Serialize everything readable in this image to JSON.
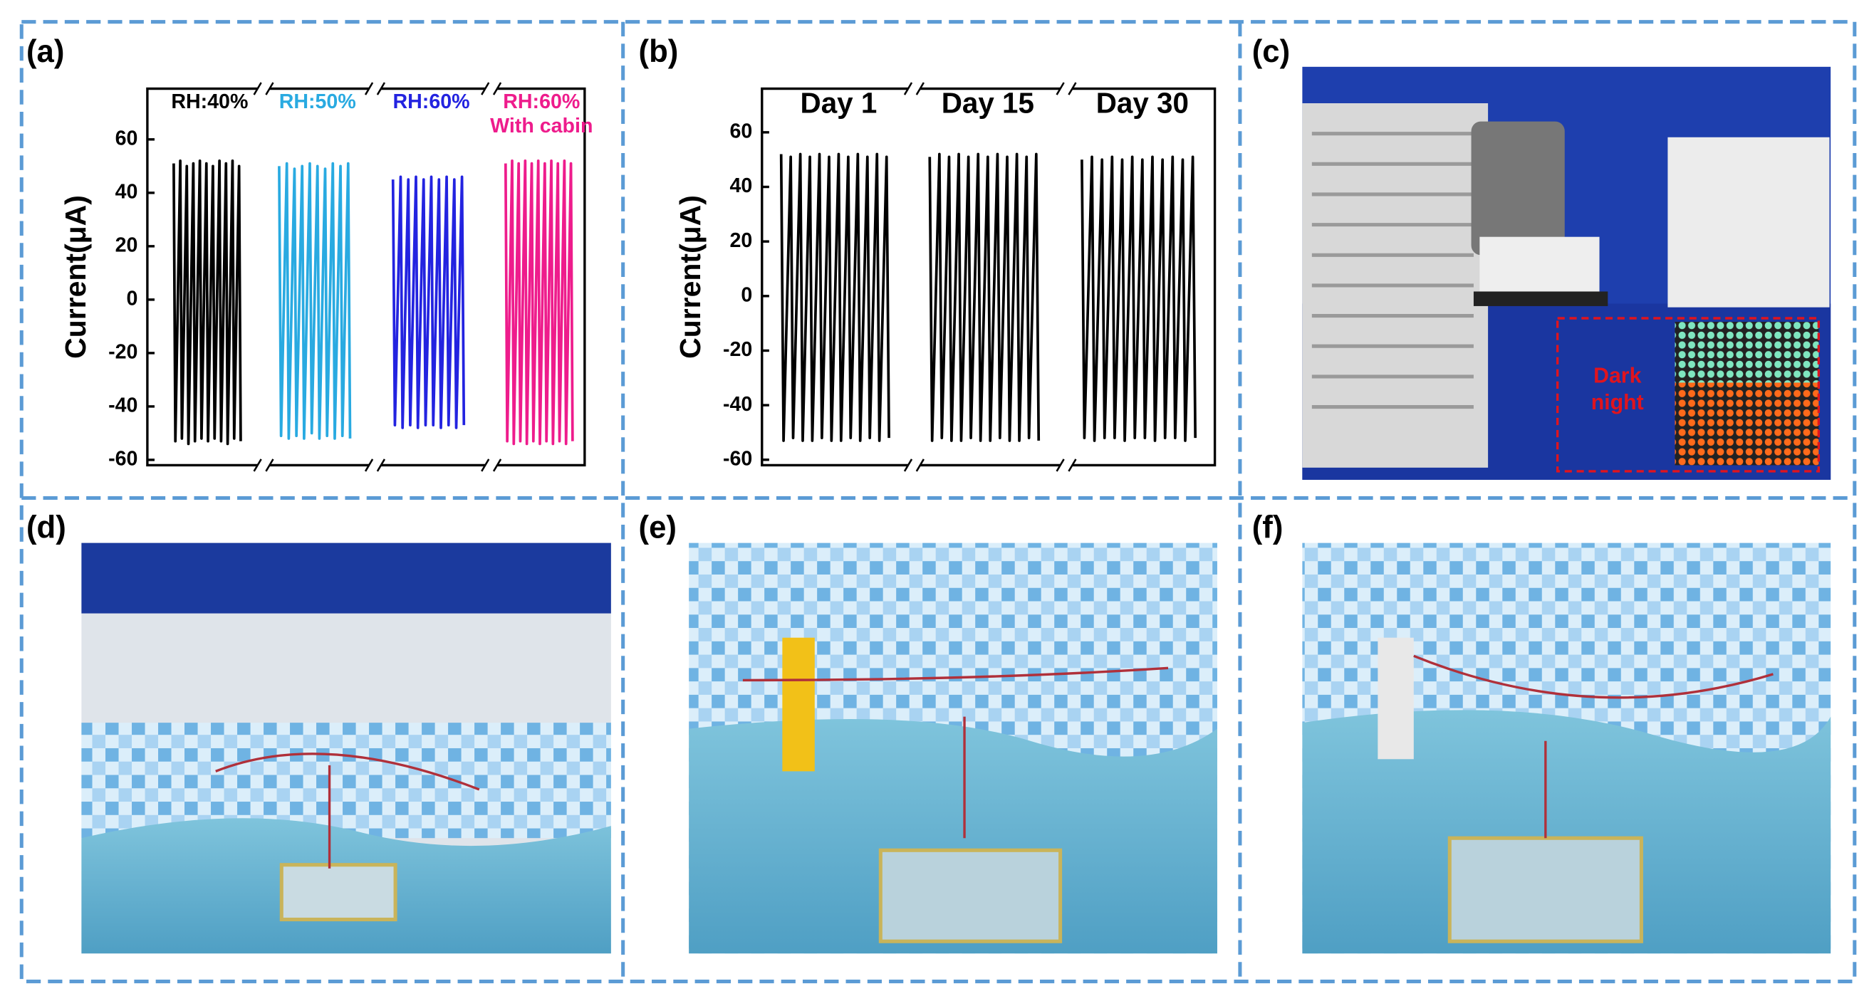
{
  "panel_labels": [
    "(a)",
    "(b)",
    "(c)",
    "(d)",
    "(e)",
    "(f)"
  ],
  "photo_annotation": "Dark night",
  "chart_data": [
    {
      "type": "line",
      "ylabel": "Current(μA)",
      "ylim": [
        -62,
        79
      ],
      "yticks": [
        -60,
        -40,
        -20,
        0,
        20,
        40,
        60
      ],
      "series": [
        {
          "name": "RH:40%",
          "color": "#000000",
          "values": [
            51,
            -53,
            52,
            -52,
            50,
            -54,
            51,
            -53,
            52,
            -52,
            51,
            -53,
            50,
            -52,
            52,
            -53,
            51,
            -54,
            52,
            -52,
            50,
            -53
          ]
        },
        {
          "name": "RH:50%",
          "color": "#29aae1",
          "values": [
            50,
            -51,
            51,
            -52,
            49,
            -51,
            50,
            -52,
            51,
            -50,
            50,
            -52,
            49,
            -51,
            51,
            -52,
            50,
            -51,
            51,
            -52
          ]
        },
        {
          "name": "RH:60%",
          "color": "#2323e0",
          "values": [
            45,
            -47,
            46,
            -48,
            45,
            -47,
            46,
            -48,
            45,
            -47,
            46,
            -47,
            45,
            -48,
            46,
            -47,
            45,
            -48,
            46,
            -47
          ]
        },
        {
          "name": "RH:60% With cabin",
          "color": "#ee1c8c",
          "values": [
            51,
            -53,
            52,
            -54,
            51,
            -53,
            52,
            -54,
            51,
            -53,
            52,
            -54,
            51,
            -53,
            52,
            -54,
            51,
            -53,
            52,
            -54,
            51,
            -53
          ]
        }
      ]
    },
    {
      "type": "line",
      "ylabel": "Current(μA)",
      "ylim": [
        -62,
        76
      ],
      "yticks": [
        -60,
        -40,
        -20,
        0,
        20,
        40,
        60
      ],
      "series": [
        {
          "name": "Day 1",
          "color": "#000000",
          "values": [
            52,
            -53,
            51,
            -52,
            52,
            -53,
            51,
            -53,
            52,
            -52,
            51,
            -53,
            52,
            -53,
            51,
            -52,
            52,
            -53,
            51,
            -52,
            52,
            -53,
            51,
            -52
          ]
        },
        {
          "name": "Day 15",
          "color": "#000000",
          "values": [
            51,
            -53,
            52,
            -52,
            51,
            -53,
            52,
            -53,
            51,
            -52,
            52,
            -53,
            51,
            -53,
            52,
            -52,
            51,
            -53,
            52,
            -53,
            51,
            -52,
            52,
            -53
          ]
        },
        {
          "name": "Day 30",
          "color": "#000000",
          "values": [
            50,
            -52,
            51,
            -53,
            50,
            -52,
            51,
            -52,
            50,
            -53,
            51,
            -52,
            50,
            -52,
            51,
            -53,
            50,
            -52,
            51,
            -52,
            50,
            -53,
            51,
            -52
          ]
        }
      ]
    }
  ]
}
